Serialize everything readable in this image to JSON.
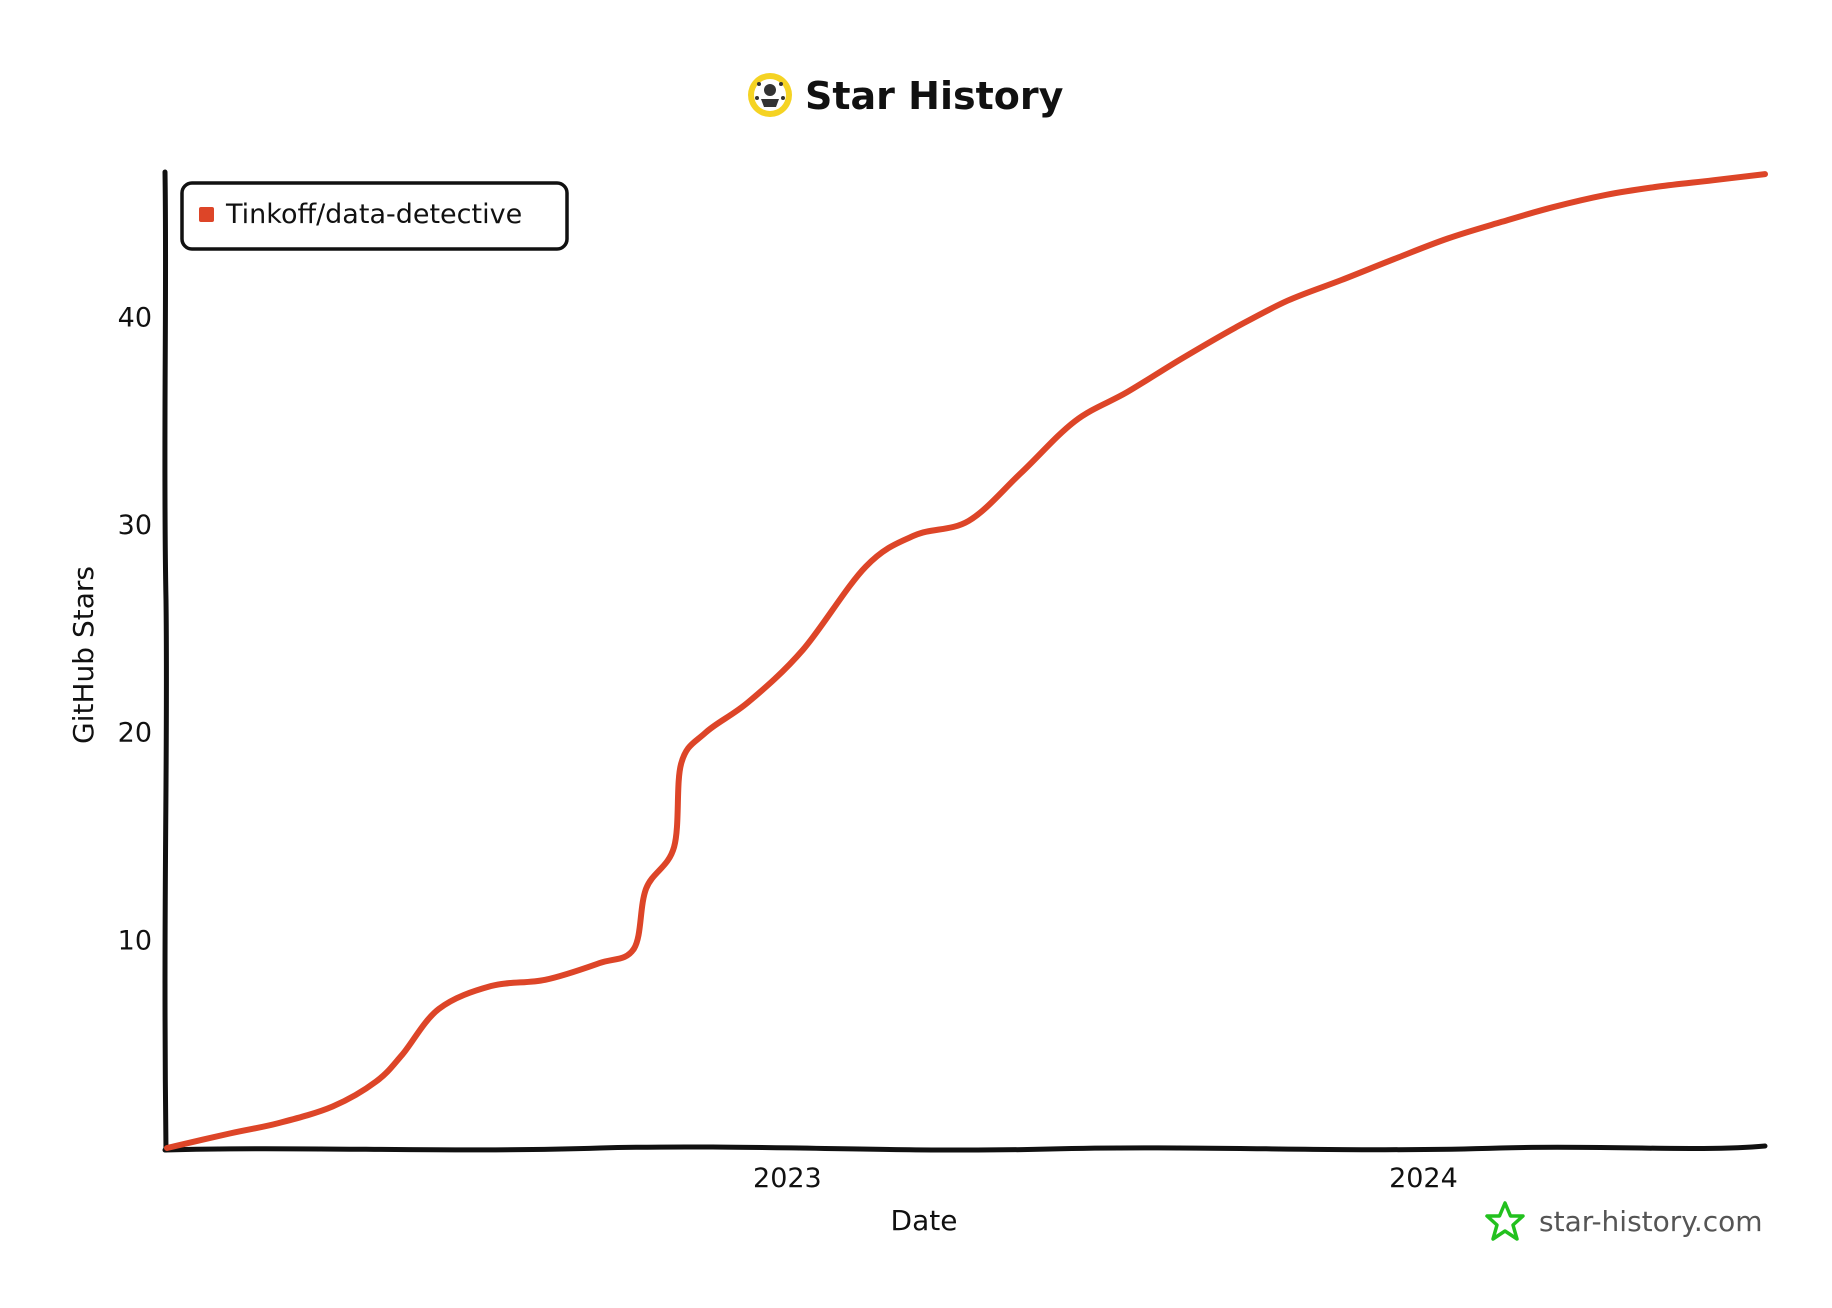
{
  "header": {
    "title": "Star History",
    "logo_icon": "star-history-logo-icon",
    "logo_color": "#f5d323"
  },
  "branding": {
    "text": "star-history.com",
    "icon": "star-outline-icon",
    "icon_color": "#22c11e"
  },
  "chart_data": {
    "type": "line",
    "title": "Star History",
    "xlabel": "Date",
    "ylabel": "GitHub Stars",
    "x_axis_type": "date",
    "xlim": [
      "2022-01-10",
      "2024-07-15"
    ],
    "ylim": [
      0,
      47
    ],
    "x_ticks": [
      {
        "value": "2023-01-01",
        "label": "2023"
      },
      {
        "value": "2024-01-01",
        "label": "2024"
      }
    ],
    "y_ticks": [
      10,
      20,
      30,
      40
    ],
    "grid": false,
    "legend_position": "top-left",
    "series": [
      {
        "name": "Tinkoff/data-detective",
        "color": "#dd4528",
        "points": [
          {
            "x": "2022-01-10",
            "y": 0
          },
          {
            "x": "2022-02-15",
            "y": 0.7
          },
          {
            "x": "2022-03-15",
            "y": 1.2
          },
          {
            "x": "2022-04-15",
            "y": 2.0
          },
          {
            "x": "2022-05-10",
            "y": 3.2
          },
          {
            "x": "2022-05-25",
            "y": 4.5
          },
          {
            "x": "2022-06-15",
            "y": 6.7
          },
          {
            "x": "2022-07-15",
            "y": 7.8
          },
          {
            "x": "2022-08-15",
            "y": 8.1
          },
          {
            "x": "2022-09-15",
            "y": 8.9
          },
          {
            "x": "2022-10-05",
            "y": 9.6
          },
          {
            "x": "2022-10-12",
            "y": 12.5
          },
          {
            "x": "2022-10-28",
            "y": 14.5
          },
          {
            "x": "2022-11-01",
            "y": 18.5
          },
          {
            "x": "2022-11-15",
            "y": 20.0
          },
          {
            "x": "2022-12-10",
            "y": 21.5
          },
          {
            "x": "2023-01-10",
            "y": 24.0
          },
          {
            "x": "2023-02-15",
            "y": 28.0
          },
          {
            "x": "2023-03-15",
            "y": 29.5
          },
          {
            "x": "2023-04-15",
            "y": 30.2
          },
          {
            "x": "2023-05-15",
            "y": 32.5
          },
          {
            "x": "2023-06-15",
            "y": 35.0
          },
          {
            "x": "2023-07-15",
            "y": 36.4
          },
          {
            "x": "2023-08-15",
            "y": 38.0
          },
          {
            "x": "2023-09-15",
            "y": 39.5
          },
          {
            "x": "2023-10-15",
            "y": 40.8
          },
          {
            "x": "2023-11-15",
            "y": 41.8
          },
          {
            "x": "2023-12-15",
            "y": 42.8
          },
          {
            "x": "2024-01-15",
            "y": 43.8
          },
          {
            "x": "2024-02-15",
            "y": 44.6
          },
          {
            "x": "2024-03-15",
            "y": 45.3
          },
          {
            "x": "2024-04-15",
            "y": 45.9
          },
          {
            "x": "2024-05-15",
            "y": 46.3
          },
          {
            "x": "2024-06-15",
            "y": 46.6
          },
          {
            "x": "2024-07-15",
            "y": 46.9
          }
        ]
      }
    ]
  }
}
